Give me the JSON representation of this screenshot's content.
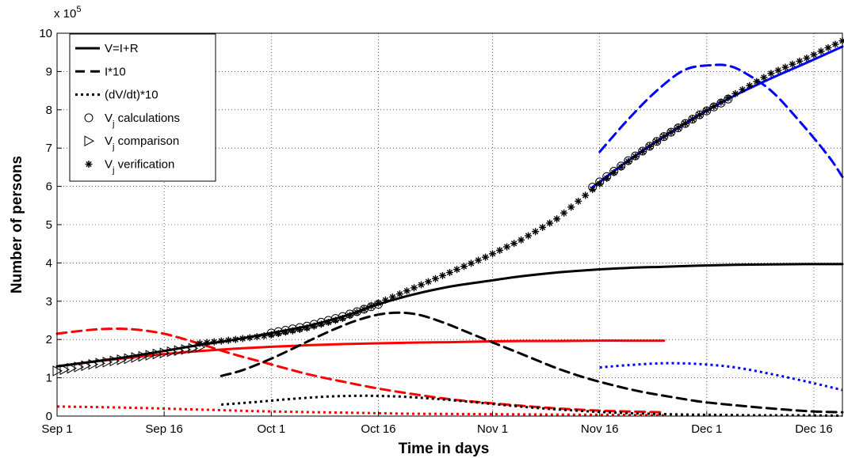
{
  "chart_data": {
    "type": "line",
    "title": "",
    "xlabel": "Time in days",
    "ylabel": "Number of persons",
    "y_multiplier_label": "x 10",
    "y_multiplier_exponent": "5",
    "xlim": [
      0,
      110
    ],
    "ylim": [
      0,
      10
    ],
    "x_unit": "days since Sep 1",
    "y_unit": "x 10^5 persons",
    "x_ticks": [
      {
        "label": "Sep 1",
        "value": 0
      },
      {
        "label": "Sep 16",
        "value": 15
      },
      {
        "label": "Oct 1",
        "value": 30
      },
      {
        "label": "Oct 16",
        "value": 45
      },
      {
        "label": "Nov 1",
        "value": 61
      },
      {
        "label": "Nov 16",
        "value": 76
      },
      {
        "label": "Dec 1",
        "value": 91
      },
      {
        "label": "Dec 16",
        "value": 106
      }
    ],
    "y_ticks": [
      0,
      1,
      2,
      3,
      4,
      5,
      6,
      7,
      8,
      9,
      10
    ],
    "grid": true,
    "legend_position": "top-left",
    "legend": [
      {
        "label": "V=I+R",
        "kind": "line",
        "dash": "solid"
      },
      {
        "label": "I*10",
        "kind": "line",
        "dash": "dashed"
      },
      {
        "label": "(dV/dt)*10",
        "kind": "line",
        "dash": "dotted"
      },
      {
        "label": "V",
        "sub": "j",
        "suffix": " calculations",
        "kind": "marker",
        "marker": "circle"
      },
      {
        "label": "V",
        "sub": "j",
        "suffix": " comparison",
        "kind": "marker",
        "marker": "triangle"
      },
      {
        "label": "V",
        "sub": "j",
        "suffix": " verification",
        "kind": "marker",
        "marker": "star"
      }
    ],
    "series": [
      {
        "group": "red",
        "style": "solid",
        "color": "#ff0000",
        "x": [
          0,
          5,
          10,
          15,
          20,
          25,
          30,
          35,
          40,
          45,
          50,
          55,
          60,
          65,
          70,
          75,
          80,
          85
        ],
        "y": [
          1.3,
          1.42,
          1.52,
          1.62,
          1.7,
          1.76,
          1.81,
          1.85,
          1.88,
          1.9,
          1.92,
          1.93,
          1.95,
          1.96,
          1.96,
          1.97,
          1.97,
          1.97
        ]
      },
      {
        "group": "red",
        "style": "dashed",
        "color": "#ff0000",
        "x": [
          0,
          3,
          6,
          9,
          12,
          15,
          18,
          21,
          25,
          30,
          35,
          40,
          45,
          50,
          55,
          60,
          65,
          70,
          75,
          80,
          85
        ],
        "y": [
          2.15,
          2.22,
          2.27,
          2.28,
          2.24,
          2.15,
          2.0,
          1.83,
          1.6,
          1.35,
          1.1,
          0.9,
          0.72,
          0.57,
          0.44,
          0.35,
          0.27,
          0.2,
          0.15,
          0.12,
          0.1
        ]
      },
      {
        "group": "red",
        "style": "dotted",
        "color": "#ff0000",
        "x": [
          0,
          10,
          20,
          30,
          40,
          50,
          60,
          70,
          80,
          85
        ],
        "y": [
          0.25,
          0.22,
          0.17,
          0.12,
          0.09,
          0.06,
          0.05,
          0.04,
          0.03,
          0.02
        ]
      },
      {
        "group": "black",
        "style": "solid",
        "color": "#000000",
        "x": [
          0,
          5,
          10,
          15,
          20,
          25,
          30,
          35,
          40,
          45,
          50,
          55,
          60,
          65,
          70,
          75,
          80,
          85,
          90,
          95,
          100,
          105,
          110
        ],
        "y": [
          1.3,
          1.42,
          1.55,
          1.7,
          1.86,
          2.0,
          2.17,
          2.35,
          2.6,
          2.92,
          3.18,
          3.38,
          3.52,
          3.65,
          3.75,
          3.82,
          3.87,
          3.9,
          3.93,
          3.95,
          3.96,
          3.97,
          3.97
        ]
      },
      {
        "group": "black",
        "style": "dashed",
        "color": "#000000",
        "x": [
          23,
          26,
          30,
          34,
          38,
          42,
          46,
          50,
          54,
          58,
          62,
          66,
          70,
          74,
          78,
          82,
          86,
          90,
          94,
          98,
          102,
          106,
          110
        ],
        "y": [
          1.05,
          1.2,
          1.5,
          1.85,
          2.2,
          2.5,
          2.68,
          2.67,
          2.45,
          2.15,
          1.85,
          1.55,
          1.25,
          1.0,
          0.8,
          0.63,
          0.5,
          0.38,
          0.3,
          0.23,
          0.17,
          0.12,
          0.1
        ]
      },
      {
        "group": "black",
        "style": "dotted",
        "color": "#000000",
        "x": [
          23,
          28,
          33,
          38,
          43,
          48,
          53,
          58,
          63,
          68,
          73,
          78,
          83,
          88,
          93,
          98,
          103,
          110
        ],
        "y": [
          0.3,
          0.37,
          0.45,
          0.51,
          0.53,
          0.51,
          0.45,
          0.37,
          0.28,
          0.2,
          0.14,
          0.09,
          0.06,
          0.04,
          0.03,
          0.02,
          0.02,
          0.01
        ]
      },
      {
        "group": "blue",
        "style": "solid",
        "color": "#0000ff",
        "x": [
          75,
          80,
          85,
          90,
          95,
          100,
          105,
          110
        ],
        "y": [
          5.98,
          6.67,
          7.3,
          7.87,
          8.38,
          8.82,
          9.23,
          9.65
        ]
      },
      {
        "group": "blue",
        "style": "dashed",
        "color": "#0000ff",
        "x": [
          76,
          80,
          84,
          88,
          92,
          94,
          96,
          100,
          104,
          108,
          110
        ],
        "y": [
          6.9,
          7.75,
          8.5,
          9.05,
          9.17,
          9.15,
          9.0,
          8.5,
          7.7,
          6.8,
          6.25
        ]
      },
      {
        "group": "blue",
        "style": "dotted",
        "color": "#0000ff",
        "x": [
          76,
          80,
          85,
          90,
          95,
          100,
          105,
          110
        ],
        "y": [
          1.27,
          1.33,
          1.38,
          1.36,
          1.27,
          1.1,
          0.9,
          0.68
        ]
      }
    ],
    "markers": [
      {
        "name": "V_j comparison",
        "marker": "triangle",
        "x_start": 0,
        "x_end": 20,
        "step": 1,
        "curve_x": [
          0,
          5,
          10,
          15,
          20
        ],
        "curve_y": [
          1.18,
          1.35,
          1.5,
          1.65,
          1.8
        ]
      },
      {
        "name": "V_j calculations",
        "marker": "circle",
        "x_start": 30,
        "x_end": 45,
        "step": 1,
        "curve_x": [
          30,
          35,
          40,
          45
        ],
        "curve_y": [
          2.17,
          2.35,
          2.6,
          2.92
        ]
      },
      {
        "name": "V_j calculations",
        "marker": "circle",
        "x_start": 75,
        "x_end": 94,
        "step": 1,
        "curve_x": [
          75,
          80,
          85,
          90,
          94
        ],
        "curve_y": [
          5.98,
          6.67,
          7.3,
          7.87,
          8.28
        ]
      },
      {
        "name": "V_j verification",
        "marker": "star",
        "x_start": 20,
        "x_end": 110,
        "step": 1,
        "curve_x": [
          20,
          25,
          30,
          35,
          40,
          45,
          50,
          55,
          60,
          65,
          70,
          75,
          80,
          85,
          90,
          95,
          100,
          105,
          110
        ],
        "curve_y": [
          1.9,
          2.0,
          2.12,
          2.3,
          2.55,
          2.95,
          3.35,
          3.75,
          4.15,
          4.6,
          5.15,
          5.92,
          6.65,
          7.3,
          7.87,
          8.42,
          8.95,
          9.35,
          9.8
        ]
      }
    ]
  }
}
